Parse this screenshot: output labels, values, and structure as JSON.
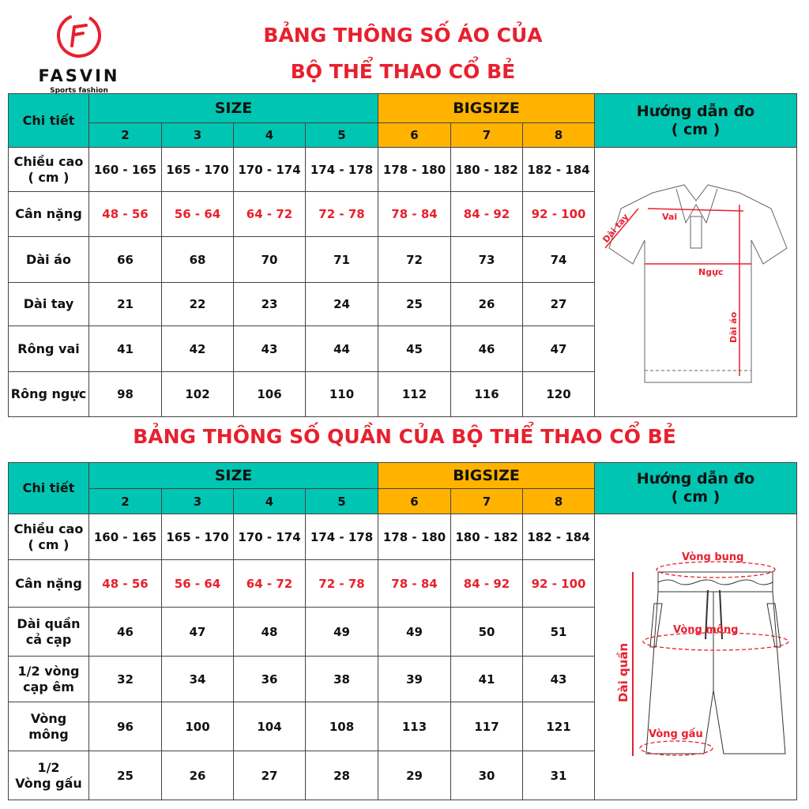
{
  "brand": {
    "name": "FASVIN",
    "tagline": "Sports fashion",
    "color": "#e8202e"
  },
  "colors": {
    "teal": "#00c5b2",
    "orange": "#ffb300",
    "red": "#e8202e"
  },
  "shirt": {
    "title_line1": "BẢNG THÔNG SỐ ÁO CỦA",
    "title_line2": "BỘ THỂ THAO CỔ BẺ",
    "detail_header": "Chi tiết",
    "size_header": "SIZE",
    "bigsize_header": "BIGSIZE",
    "guide_header": "Hướng dẫn đo\n( cm )",
    "sizes": [
      "2",
      "3",
      "4",
      "5",
      "6",
      "7",
      "8"
    ],
    "rows": [
      {
        "label": "Chiều cao\n( cm )",
        "values": [
          "160 - 165",
          "165 - 170",
          "170 - 174",
          "174 - 178",
          "178 - 180",
          "180 - 182",
          "182 - 184"
        ]
      },
      {
        "label": "Cân nặng",
        "values": [
          "48 - 56",
          "56 - 64",
          "64 - 72",
          "72 - 78",
          "78 - 84",
          "84 - 92",
          "92 - 100"
        ],
        "red": true
      },
      {
        "label": "Dài áo",
        "values": [
          "66",
          "68",
          "70",
          "71",
          "72",
          "73",
          "74"
        ]
      },
      {
        "label": "Dài tay",
        "values": [
          "21",
          "22",
          "23",
          "24",
          "25",
          "26",
          "27"
        ]
      },
      {
        "label": "Rông vai",
        "values": [
          "41",
          "42",
          "43",
          "44",
          "45",
          "46",
          "47"
        ]
      },
      {
        "label": "Rông ngực",
        "values": [
          "98",
          "102",
          "106",
          "110",
          "112",
          "116",
          "120"
        ]
      }
    ],
    "diagram": {
      "sleeve": "Dài tay",
      "shoulder": "Vai",
      "chest": "Ngực",
      "length": "Dài áo"
    }
  },
  "pants": {
    "title": "BẢNG THÔNG SỐ QUẦN CỦA BỘ THỂ THAO CỔ BẺ",
    "detail_header": "Chi tiết",
    "size_header": "SIZE",
    "bigsize_header": "BIGSIZE",
    "guide_header": "Hướng dẫn đo\n( cm )",
    "sizes": [
      "2",
      "3",
      "4",
      "5",
      "6",
      "7",
      "8"
    ],
    "rows": [
      {
        "label": "Chiều cao\n( cm )",
        "values": [
          "160 - 165",
          "165 - 170",
          "170 - 174",
          "174 - 178",
          "178 - 180",
          "180 - 182",
          "182 - 184"
        ]
      },
      {
        "label": "Cân nặng",
        "values": [
          "48 - 56",
          "56 - 64",
          "64 - 72",
          "72 - 78",
          "78 - 84",
          "84 - 92",
          "92 - 100"
        ],
        "red": true
      },
      {
        "label": "Dài quần\ncả cạp",
        "values": [
          "46",
          "47",
          "48",
          "49",
          "49",
          "50",
          "51"
        ]
      },
      {
        "label": "1/2 vòng\ncạp êm",
        "values": [
          "32",
          "34",
          "36",
          "38",
          "39",
          "41",
          "43"
        ]
      },
      {
        "label": "Vòng\nmông",
        "values": [
          "96",
          "100",
          "104",
          "108",
          "113",
          "117",
          "121"
        ]
      },
      {
        "label": "1/2\nVòng gấu",
        "values": [
          "25",
          "26",
          "27",
          "28",
          "29",
          "30",
          "31"
        ]
      }
    ],
    "diagram": {
      "waist": "Vòng bụng",
      "hip": "Vòng mông",
      "hem": "Vòng gấu",
      "length": "Dài quần"
    }
  }
}
